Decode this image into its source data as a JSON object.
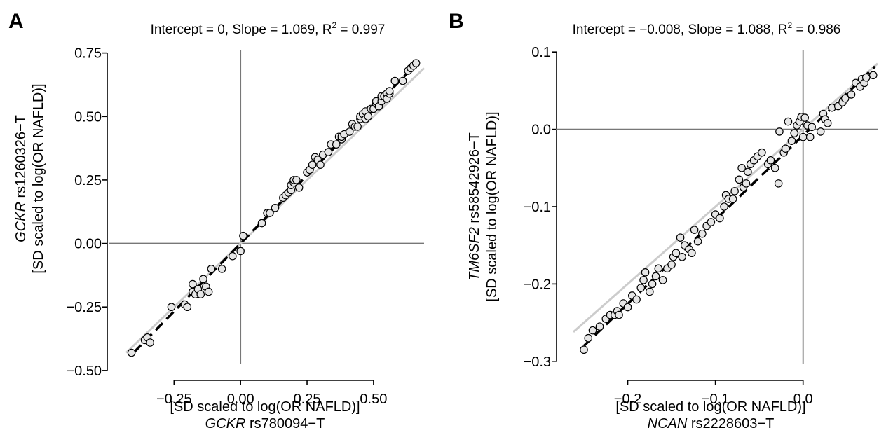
{
  "chart_data": [
    {
      "type": "scatter",
      "panel": "A",
      "title": {
        "lead": "Intercept = 0, Slope = 1.069, R",
        "sup": "2",
        "tail": " = 0.997"
      },
      "xlabel": {
        "line1": "[SD scaled to log(OR NAFLD)]",
        "gene": "GCKR",
        "snp": " rs780094−T"
      },
      "ylabel": {
        "gene": "GCKR",
        "snp": " rs1260326−T",
        "line2": "[SD scaled to log(OR NAFLD)]"
      },
      "xlim": [
        -0.43,
        0.69
      ],
      "ylim": [
        -0.47,
        0.76
      ],
      "x_ticks": [
        -0.25,
        0.0,
        0.25,
        0.5
      ],
      "x_tick_labels": [
        "−0.25",
        "0.00",
        "0.25",
        "0.50"
      ],
      "y_ticks": [
        -0.5,
        -0.25,
        0.0,
        0.25,
        0.5,
        0.75
      ],
      "y_tick_labels": [
        "−0.50",
        "−0.25",
        "0.00",
        "0.25",
        "0.50",
        "0.75"
      ],
      "fit": {
        "intercept": 0,
        "slope": 1.069,
        "x_range": [
          -0.4,
          0.66
        ]
      },
      "colors": {
        "point_fill": "#e6e6e6",
        "point_stroke": "#000000",
        "fit_line": "#000000",
        "identity_line": "#cccccc",
        "zero_line": "#777777"
      },
      "points": [
        [
          -0.41,
          -0.43
        ],
        [
          -0.36,
          -0.38
        ],
        [
          -0.35,
          -0.37
        ],
        [
          -0.34,
          -0.39
        ],
        [
          -0.26,
          -0.25
        ],
        [
          -0.21,
          -0.24
        ],
        [
          -0.2,
          -0.25
        ],
        [
          -0.18,
          -0.16
        ],
        [
          -0.18,
          -0.19
        ],
        [
          -0.17,
          -0.2
        ],
        [
          -0.16,
          -0.18
        ],
        [
          -0.15,
          -0.2
        ],
        [
          -0.14,
          -0.14
        ],
        [
          -0.13,
          -0.17
        ],
        [
          -0.12,
          -0.19
        ],
        [
          -0.11,
          -0.1
        ],
        [
          -0.07,
          -0.1
        ],
        [
          -0.03,
          -0.05
        ],
        [
          0.0,
          -0.03
        ],
        [
          0.01,
          0.03
        ],
        [
          0.08,
          0.08
        ],
        [
          0.1,
          0.12
        ],
        [
          0.11,
          0.12
        ],
        [
          0.13,
          0.14
        ],
        [
          0.16,
          0.18
        ],
        [
          0.17,
          0.19
        ],
        [
          0.18,
          0.2
        ],
        [
          0.19,
          0.21
        ],
        [
          0.19,
          0.23
        ],
        [
          0.2,
          0.24
        ],
        [
          0.2,
          0.25
        ],
        [
          0.21,
          0.25
        ],
        [
          0.22,
          0.22
        ],
        [
          0.25,
          0.28
        ],
        [
          0.26,
          0.29
        ],
        [
          0.27,
          0.31
        ],
        [
          0.28,
          0.34
        ],
        [
          0.29,
          0.33
        ],
        [
          0.3,
          0.31
        ],
        [
          0.31,
          0.35
        ],
        [
          0.33,
          0.36
        ],
        [
          0.34,
          0.39
        ],
        [
          0.36,
          0.39
        ],
        [
          0.37,
          0.42
        ],
        [
          0.38,
          0.41
        ],
        [
          0.38,
          0.42
        ],
        [
          0.39,
          0.43
        ],
        [
          0.41,
          0.44
        ],
        [
          0.42,
          0.47
        ],
        [
          0.43,
          0.46
        ],
        [
          0.44,
          0.46
        ],
        [
          0.45,
          0.49
        ],
        [
          0.45,
          0.5
        ],
        [
          0.46,
          0.51
        ],
        [
          0.47,
          0.49
        ],
        [
          0.47,
          0.52
        ],
        [
          0.48,
          0.5
        ],
        [
          0.49,
          0.53
        ],
        [
          0.5,
          0.53
        ],
        [
          0.51,
          0.55
        ],
        [
          0.51,
          0.56
        ],
        [
          0.52,
          0.54
        ],
        [
          0.53,
          0.56
        ],
        [
          0.53,
          0.58
        ],
        [
          0.54,
          0.58
        ],
        [
          0.55,
          0.59
        ],
        [
          0.55,
          0.57
        ],
        [
          0.56,
          0.59
        ],
        [
          0.56,
          0.6
        ],
        [
          0.58,
          0.64
        ],
        [
          0.61,
          0.64
        ],
        [
          0.63,
          0.68
        ],
        [
          0.64,
          0.69
        ],
        [
          0.65,
          0.7
        ],
        [
          0.66,
          0.71
        ]
      ]
    },
    {
      "type": "scatter",
      "panel": "B",
      "title": {
        "lead": "Intercept = −0.008, Slope = 1.088, R",
        "sup": "2",
        "tail": " = 0.986"
      },
      "xlabel": {
        "line1": "[SD scaled to log(OR NAFLD)]",
        "gene": "NCAN",
        "snp": " rs2228603−T"
      },
      "ylabel": {
        "gene": "TM6SF2",
        "snp": " rs58542926−T",
        "line2": "[SD scaled to log(OR NAFLD)]"
      },
      "xlim": [
        -0.262,
        0.085
      ],
      "ylim": [
        -0.302,
        0.102
      ],
      "x_ticks": [
        -0.2,
        -0.1,
        0.0
      ],
      "x_tick_labels": [
        "−0.2",
        "−0.1",
        "0.0"
      ],
      "y_ticks": [
        -0.3,
        -0.2,
        -0.1,
        0.0,
        0.1
      ],
      "y_tick_labels": [
        "−0.3",
        "−0.2",
        "−0.1",
        "0.0",
        "0.1"
      ],
      "fit": {
        "intercept": -0.008,
        "slope": 1.088,
        "x_range": [
          -0.25,
          0.082
        ]
      },
      "colors": {
        "point_fill": "#e6e6e6",
        "point_stroke": "#000000",
        "fit_line": "#000000",
        "identity_line": "#cccccc",
        "zero_line": "#777777"
      },
      "points": [
        [
          -0.25,
          -0.285
        ],
        [
          -0.245,
          -0.27
        ],
        [
          -0.24,
          -0.26
        ],
        [
          -0.232,
          -0.255
        ],
        [
          -0.225,
          -0.245
        ],
        [
          -0.22,
          -0.24
        ],
        [
          -0.215,
          -0.24
        ],
        [
          -0.212,
          -0.235
        ],
        [
          -0.21,
          -0.24
        ],
        [
          -0.205,
          -0.225
        ],
        [
          -0.2,
          -0.23
        ],
        [
          -0.195,
          -0.215
        ],
        [
          -0.19,
          -0.22
        ],
        [
          -0.185,
          -0.205
        ],
        [
          -0.182,
          -0.195
        ],
        [
          -0.18,
          -0.185
        ],
        [
          -0.175,
          -0.21
        ],
        [
          -0.172,
          -0.2
        ],
        [
          -0.168,
          -0.19
        ],
        [
          -0.165,
          -0.18
        ],
        [
          -0.16,
          -0.195
        ],
        [
          -0.155,
          -0.18
        ],
        [
          -0.15,
          -0.175
        ],
        [
          -0.148,
          -0.165
        ],
        [
          -0.145,
          -0.16
        ],
        [
          -0.14,
          -0.14
        ],
        [
          -0.138,
          -0.165
        ],
        [
          -0.135,
          -0.15
        ],
        [
          -0.13,
          -0.155
        ],
        [
          -0.127,
          -0.16
        ],
        [
          -0.124,
          -0.13
        ],
        [
          -0.12,
          -0.145
        ],
        [
          -0.115,
          -0.135
        ],
        [
          -0.11,
          -0.125
        ],
        [
          -0.105,
          -0.12
        ],
        [
          -0.1,
          -0.11
        ],
        [
          -0.095,
          -0.115
        ],
        [
          -0.09,
          -0.1
        ],
        [
          -0.088,
          -0.085
        ],
        [
          -0.085,
          -0.09
        ],
        [
          -0.08,
          -0.09
        ],
        [
          -0.078,
          -0.08
        ],
        [
          -0.073,
          -0.065
        ],
        [
          -0.07,
          -0.05
        ],
        [
          -0.068,
          -0.075
        ],
        [
          -0.065,
          -0.07
        ],
        [
          -0.063,
          -0.055
        ],
        [
          -0.06,
          -0.045
        ],
        [
          -0.056,
          -0.04
        ],
        [
          -0.052,
          -0.035
        ],
        [
          -0.047,
          -0.03
        ],
        [
          -0.04,
          -0.045
        ],
        [
          -0.037,
          -0.04
        ],
        [
          -0.032,
          -0.05
        ],
        [
          -0.028,
          -0.07
        ],
        [
          -0.027,
          -0.003
        ],
        [
          -0.022,
          -0.03
        ],
        [
          -0.02,
          -0.025
        ],
        [
          -0.017,
          0.01
        ],
        [
          -0.013,
          -0.015
        ],
        [
          -0.01,
          -0.005
        ],
        [
          -0.007,
          0.005
        ],
        [
          -0.004,
          0.01
        ],
        [
          -0.002,
          0.016
        ],
        [
          0.0,
          -0.01
        ],
        [
          0.002,
          0.015
        ],
        [
          0.005,
          0.005
        ],
        [
          0.008,
          -0.01
        ],
        [
          0.01,
          0.003
        ],
        [
          0.02,
          -0.003
        ],
        [
          0.023,
          0.02
        ],
        [
          0.025,
          0.013
        ],
        [
          0.028,
          0.008
        ],
        [
          0.033,
          0.028
        ],
        [
          0.04,
          0.03
        ],
        [
          0.045,
          0.035
        ],
        [
          0.048,
          0.04
        ],
        [
          0.055,
          0.045
        ],
        [
          0.06,
          0.06
        ],
        [
          0.065,
          0.055
        ],
        [
          0.067,
          0.065
        ],
        [
          0.07,
          0.06
        ],
        [
          0.072,
          0.067
        ],
        [
          0.08,
          0.07
        ]
      ]
    }
  ]
}
